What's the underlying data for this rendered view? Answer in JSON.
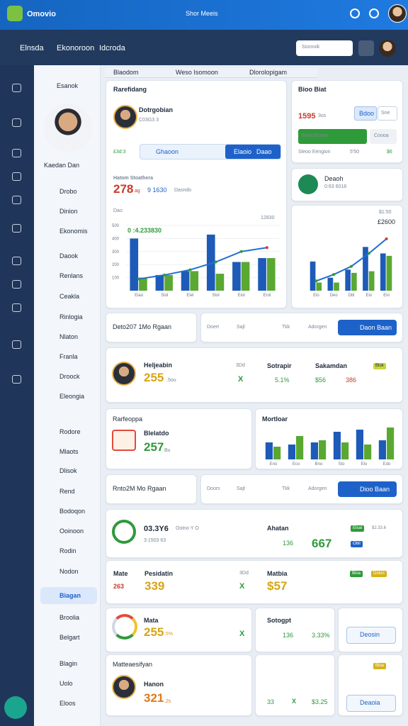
{
  "header": {
    "app_name": "Omovio",
    "title": "Shor Meeis"
  },
  "nav": {
    "items": [
      "Elnsda",
      "Ekonoroon",
      "Idcroda"
    ],
    "search": "Soonoik"
  },
  "tabs": [
    "Blaodom",
    "Weso Isomoon",
    "Dlorolopigam"
  ],
  "sidebar": {
    "section": "Esanok",
    "profile_name": "Kaedan Dan",
    "menu": [
      "Drobo",
      "Dinion",
      "Ekonomis",
      "Daook",
      "Renlans",
      "Ceakla",
      "Rinlogia",
      "Nlaton",
      "Franla",
      "Droock",
      "Eleongia",
      "Rodore",
      "Mlaots",
      "Dlisok",
      "Rend",
      "Bodoqon",
      "Ooinoon",
      "Rodin",
      "Nodon",
      "Biagan",
      "Broolia",
      "Belgart",
      "Blagin",
      "Uolo",
      "Eloos"
    ]
  },
  "overview": {
    "title": "Rarefidang",
    "user": "Dotrgobian",
    "user_id": "C03G3 3",
    "tag": "£3d:3",
    "input": "Ghaoon",
    "toggle": [
      "Elaoio",
      "Daao"
    ],
    "stat_label": "Hatom Stoathera",
    "stat_value": "278",
    "stat_unit": "ag",
    "stat_sub": "9 1630",
    "stat_note": "Dasndo",
    "chart_label": "Dao",
    "chart_note": "12830",
    "legend": "0 :4.233830"
  },
  "budget": {
    "title": "Bioo Biat",
    "value": "1595",
    "unit": "3os",
    "buttons": [
      "Bdoo",
      "Sne"
    ],
    "bar_label": "Eoiol Esoos",
    "bar_right": "Coooa",
    "foot_label": "Sleoo Eengion",
    "foot_value": "5'50",
    "foot_amount": "$6"
  },
  "brand": {
    "name": "Deaoh",
    "id": "0:63 6018"
  },
  "trend": {
    "notes": [
      "$1:50",
      "£2600"
    ]
  },
  "row1": {
    "title": "Deto207 1Mo Rgaan",
    "tabs": [
      "Doert",
      "Sajl",
      "Tkk",
      "Adorgen"
    ],
    "button": "Daon Baan"
  },
  "person": {
    "name": "Heljeabin",
    "value": "255",
    "unit": ".5ou",
    "side": "3Dd",
    "mark": "X",
    "col1_label": "Sotrapir",
    "col1_value": "5.1%",
    "col2_label": "Sakamdan",
    "col2_value": "$56",
    "col2_extra": "386",
    "chip": "Blok"
  },
  "report": {
    "title": "Rarfeoppa",
    "name": "Blelatdo",
    "value": "257",
    "unit": "Bu"
  },
  "mix": {
    "title": "Mortloar"
  },
  "row2": {
    "title": "Rnto2M Mo Rgaan",
    "tabs": [
      "Doors",
      "Sajt",
      "Tkk",
      "Adorgen"
    ],
    "button": "Dioo Baan"
  },
  "goal": {
    "value": "03.3Y6",
    "meta": "Ootno Y O",
    "sub": "3:1503 63",
    "right_label": "Ahatan",
    "right_a": "136",
    "right_b": "667",
    "chips": [
      "Elsal",
      "$2.33.6",
      "Obil"
    ]
  },
  "mate": {
    "label": "Mate",
    "name": "Pesidatin",
    "side": "3Dd",
    "small": "263",
    "big": "339",
    "mark": "X",
    "right_label": "Matbia",
    "right_big": "$57",
    "chips": [
      "Bloa",
      "Dolon"
    ]
  },
  "mata": {
    "label": "Mata",
    "value": "255",
    "unit": ".5%",
    "mark": "X",
    "mid_label": "Sotogpt",
    "mid_a": "136",
    "mid_b": "3.33%",
    "button": "Deosin"
  },
  "last": {
    "title": "Matteaesifyan",
    "name": "Hanon",
    "value": "321",
    "unit": ".2s",
    "mid_a": "33",
    "mid_mark": "X",
    "mid_b": "$3.25",
    "chip": "Bloa",
    "button": "Deaoia"
  },
  "chart_data": [
    {
      "type": "bar",
      "categories": [
        "Eiao",
        "Slol",
        "Elel",
        "Stol",
        "Eiol",
        "Erol"
      ],
      "series": [
        {
          "color": "#1e5bb8",
          "values": [
            400,
            120,
            150,
            430,
            220,
            250
          ]
        },
        {
          "color": "#5aa832",
          "values": [
            100,
            120,
            150,
            130,
            220,
            250
          ]
        },
        {
          "type": "line",
          "color": "#1f6fd0",
          "values": [
            90,
            120,
            160,
            220,
            300,
            330
          ]
        }
      ],
      "ylim": [
        0,
        500
      ],
      "yticks": [
        100,
        200,
        300,
        400,
        500
      ],
      "grid": true
    },
    {
      "type": "bar",
      "categories": [
        "Elo",
        "Deo",
        "Dbl",
        "Eio",
        "Elo"
      ],
      "series": [
        {
          "color": "#1e5bb8",
          "values": [
            180,
            80,
            130,
            270,
            230
          ]
        },
        {
          "color": "#5aa832",
          "values": [
            50,
            50,
            110,
            120,
            215
          ]
        },
        {
          "type": "line",
          "color": "#1f6fd0",
          "values": [
            60,
            100,
            150,
            230,
            320
          ]
        }
      ],
      "ylim": [
        0,
        350
      ]
    },
    {
      "type": "bar",
      "categories": [
        "Eno",
        "Eco",
        "Bno",
        "Sto",
        "Elo",
        "Edo"
      ],
      "series": [
        {
          "color": "#1e5bb8",
          "values": [
            40,
            35,
            40,
            65,
            70,
            45
          ]
        },
        {
          "color": "#5aa832",
          "values": [
            30,
            55,
            45,
            40,
            35,
            75
          ]
        }
      ],
      "ylim": [
        0,
        80
      ]
    }
  ]
}
